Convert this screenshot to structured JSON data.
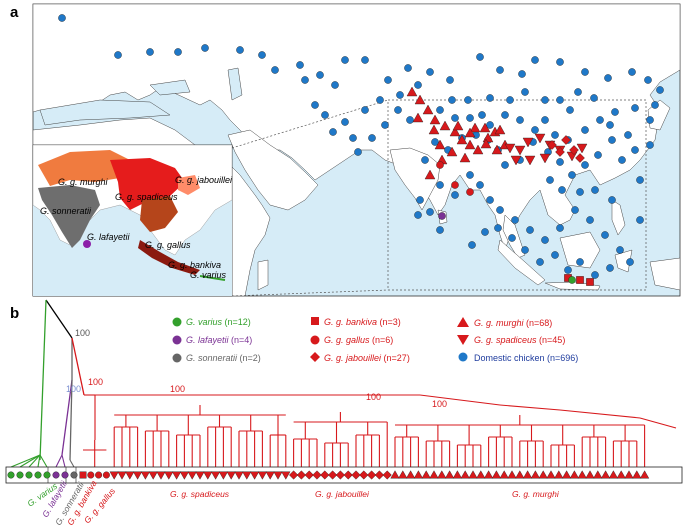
{
  "panels": {
    "a": "a",
    "b": "b"
  },
  "colors": {
    "varius": "#33a02c",
    "lafayetii": "#7b3294",
    "sonneratii": "#666666",
    "red_jungle": "#d7191c",
    "domestic": "#1f78c8",
    "sea": "#d6ecf7",
    "land": "#ffffff"
  },
  "inset_map_labels": {
    "murghi": "G. g. murghi",
    "jabouillei": "G. g. jabouillei",
    "spadiceus": "G. g. spadiceus",
    "sonneratii": "G. sonneratii",
    "lafayetii": "G. lafayetii",
    "gallus": "G. g. gallus",
    "bankiva": "G. g. bankiva",
    "varius": "G. varius"
  },
  "legend": {
    "varius": {
      "species": "G. varius",
      "count": " (n=12)"
    },
    "lafayetii": {
      "species": "G. lafayetii",
      "count": " (n=4)"
    },
    "sonneratii": {
      "species": "G. sonneratii",
      "count": " (n=2)"
    },
    "bankiva": {
      "species": "G. g. bankiva",
      "count": " (n=3)"
    },
    "gallus": {
      "species": "G. g. gallus",
      "count": " (n=6)"
    },
    "jabouillei": {
      "species": "G. g. jabouillei",
      "count": " (n=27)"
    },
    "murghi": {
      "species": "G. g. murghi",
      "count": " (n=68)"
    },
    "spadiceus": {
      "species": "G. g. spadiceus",
      "count": " (n=45)"
    },
    "domestic": {
      "species": "Domestic chicken (n=696)"
    }
  },
  "bootstrap": {
    "b1": "100",
    "b2": "100",
    "b3": "100",
    "b4": "100",
    "b5": "100",
    "b6": "100"
  },
  "tip_labels": {
    "varius": "G. varius",
    "lafayetii": "G. lafayetii",
    "sonneratii": "G. sonneratii",
    "bankiva": "G. g. bankiva",
    "gallus": "G. g. gallus",
    "spadiceus": "G. g. spadiceus",
    "jabouillei": "G. g. jabouillei",
    "murghi": "G. g. murghi"
  },
  "map_points": {
    "domestic": [
      [
        62,
        18
      ],
      [
        118,
        55
      ],
      [
        150,
        52
      ],
      [
        178,
        52
      ],
      [
        205,
        48
      ],
      [
        240,
        50
      ],
      [
        262,
        55
      ],
      [
        275,
        70
      ],
      [
        300,
        65
      ],
      [
        320,
        75
      ],
      [
        335,
        85
      ],
      [
        345,
        60
      ],
      [
        365,
        60
      ],
      [
        388,
        80
      ],
      [
        408,
        68
      ],
      [
        430,
        72
      ],
      [
        450,
        80
      ],
      [
        480,
        57
      ],
      [
        500,
        70
      ],
      [
        522,
        74
      ],
      [
        535,
        60
      ],
      [
        560,
        62
      ],
      [
        585,
        72
      ],
      [
        608,
        78
      ],
      [
        632,
        72
      ],
      [
        648,
        80
      ],
      [
        660,
        90
      ],
      [
        305,
        80
      ],
      [
        315,
        105
      ],
      [
        325,
        115
      ],
      [
        333,
        132
      ],
      [
        345,
        122
      ],
      [
        353,
        138
      ],
      [
        365,
        110
      ],
      [
        380,
        100
      ],
      [
        400,
        95
      ],
      [
        418,
        85
      ],
      [
        440,
        110
      ],
      [
        455,
        118
      ],
      [
        470,
        118
      ],
      [
        482,
        115
      ],
      [
        490,
        125
      ],
      [
        505,
        115
      ],
      [
        520,
        120
      ],
      [
        535,
        130
      ],
      [
        545,
        120
      ],
      [
        555,
        135
      ],
      [
        568,
        140
      ],
      [
        585,
        130
      ],
      [
        600,
        120
      ],
      [
        615,
        112
      ],
      [
        635,
        108
      ],
      [
        650,
        120
      ],
      [
        655,
        105
      ],
      [
        628,
        135
      ],
      [
        612,
        140
      ],
      [
        598,
        155
      ],
      [
        585,
        165
      ],
      [
        572,
        175
      ],
      [
        560,
        162
      ],
      [
        548,
        152
      ],
      [
        533,
        142
      ],
      [
        520,
        160
      ],
      [
        505,
        165
      ],
      [
        498,
        150
      ],
      [
        488,
        140
      ],
      [
        476,
        135
      ],
      [
        462,
        138
      ],
      [
        448,
        150
      ],
      [
        435,
        142
      ],
      [
        425,
        160
      ],
      [
        440,
        185
      ],
      [
        455,
        195
      ],
      [
        470,
        175
      ],
      [
        480,
        185
      ],
      [
        490,
        200
      ],
      [
        500,
        210
      ],
      [
        515,
        220
      ],
      [
        530,
        230
      ],
      [
        545,
        240
      ],
      [
        560,
        228
      ],
      [
        575,
        210
      ],
      [
        590,
        220
      ],
      [
        605,
        235
      ],
      [
        620,
        250
      ],
      [
        630,
        262
      ],
      [
        610,
        268
      ],
      [
        595,
        275
      ],
      [
        580,
        262
      ],
      [
        568,
        270
      ],
      [
        555,
        255
      ],
      [
        540,
        262
      ],
      [
        525,
        250
      ],
      [
        512,
        238
      ],
      [
        498,
        228
      ],
      [
        485,
        232
      ],
      [
        472,
        245
      ],
      [
        440,
        230
      ],
      [
        430,
        212
      ],
      [
        418,
        215
      ],
      [
        420,
        200
      ],
      [
        550,
        180
      ],
      [
        562,
        190
      ],
      [
        580,
        192
      ],
      [
        595,
        190
      ],
      [
        612,
        200
      ],
      [
        640,
        180
      ],
      [
        650,
        145
      ],
      [
        635,
        150
      ],
      [
        622,
        160
      ],
      [
        640,
        220
      ],
      [
        560,
        100
      ],
      [
        578,
        92
      ],
      [
        594,
        98
      ],
      [
        410,
        120
      ],
      [
        398,
        110
      ],
      [
        385,
        125
      ],
      [
        372,
        138
      ],
      [
        358,
        152
      ],
      [
        452,
        100
      ],
      [
        468,
        100
      ],
      [
        490,
        98
      ],
      [
        510,
        100
      ],
      [
        525,
        92
      ],
      [
        545,
        100
      ],
      [
        570,
        110
      ],
      [
        610,
        125
      ]
    ],
    "murghi": [
      [
        420,
        100
      ],
      [
        428,
        110
      ],
      [
        435,
        120
      ],
      [
        445,
        126
      ],
      [
        455,
        132
      ],
      [
        462,
        140
      ],
      [
        470,
        145
      ],
      [
        440,
        145
      ],
      [
        452,
        152
      ],
      [
        465,
        158
      ],
      [
        478,
        150
      ],
      [
        488,
        138
      ],
      [
        495,
        132
      ],
      [
        505,
        145
      ],
      [
        430,
        175
      ],
      [
        442,
        160
      ],
      [
        475,
        128
      ],
      [
        485,
        128
      ],
      [
        500,
        130
      ],
      [
        412,
        92
      ],
      [
        418,
        118
      ],
      [
        434,
        130
      ],
      [
        458,
        126
      ],
      [
        470,
        133
      ],
      [
        486,
        144
      ],
      [
        497,
        150
      ]
    ],
    "spadiceus": [
      [
        510,
        148
      ],
      [
        520,
        150
      ],
      [
        528,
        142
      ],
      [
        540,
        138
      ],
      [
        550,
        145
      ],
      [
        560,
        150
      ],
      [
        572,
        156
      ],
      [
        582,
        148
      ],
      [
        530,
        160
      ],
      [
        516,
        160
      ],
      [
        545,
        158
      ]
    ],
    "jabouillei": [
      [
        552,
        145
      ],
      [
        560,
        152
      ],
      [
        566,
        140
      ],
      [
        574,
        150
      ],
      [
        580,
        158
      ]
    ],
    "gallus": [
      [
        440,
        165
      ],
      [
        455,
        185
      ],
      [
        470,
        192
      ]
    ],
    "bankiva": [
      [
        568,
        278
      ],
      [
        580,
        280
      ],
      [
        590,
        282
      ]
    ],
    "varius": [
      [
        572,
        280
      ]
    ],
    "lafayetii": [
      [
        442,
        216
      ]
    ]
  },
  "tree": {
    "counts": {
      "varius": 5,
      "lafayetii": 2,
      "sonneratii": 1,
      "bankiva": 1,
      "gallus": 3,
      "spadiceus": 23,
      "jabouillei": 13,
      "murghi": 33
    }
  }
}
